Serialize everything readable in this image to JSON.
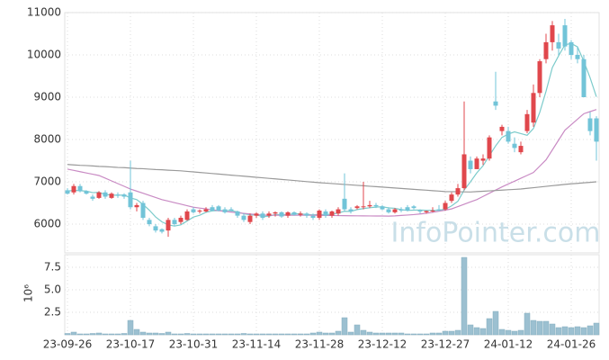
{
  "chart_data": [
    {
      "type": "candlestick",
      "open": [
        6800,
        6750,
        6900,
        6780,
        6650,
        6620,
        6750,
        6620,
        6700,
        6700,
        6750,
        6400,
        6500,
        6100,
        5950,
        5880,
        5850,
        6100,
        6050,
        6100,
        6350,
        6300,
        6300,
        6400,
        6420,
        6350,
        6350,
        6300,
        6200,
        6050,
        6200,
        6250,
        6200,
        6250,
        6280,
        6200,
        6280,
        6220,
        6250,
        6200,
        6150,
        6300,
        6200,
        6250,
        6600,
        6350,
        6380,
        6400,
        6420,
        6450,
        6420,
        6350,
        6280,
        6350,
        6400,
        6420,
        6320,
        6280,
        6300,
        6350,
        6350,
        6550,
        6700,
        6850,
        7500,
        7300,
        7500,
        7550,
        8900,
        8200,
        8200,
        7900,
        7700,
        8200,
        8400,
        9100,
        9900,
        10300,
        10300,
        10700,
        10300,
        10000,
        9900,
        8500,
        8500
      ],
      "high": [
        6850,
        6950,
        6950,
        6800,
        6700,
        6780,
        6800,
        6750,
        6750,
        6730,
        7500,
        6500,
        6550,
        6150,
        6000,
        5900,
        6150,
        6150,
        6200,
        6350,
        6400,
        6350,
        6400,
        6450,
        6450,
        6400,
        6400,
        6320,
        6250,
        6250,
        6280,
        6300,
        6300,
        6300,
        6300,
        6300,
        6300,
        6300,
        6280,
        6250,
        6350,
        6350,
        6320,
        6400,
        7200,
        6400,
        6450,
        7000,
        6550,
        6500,
        6450,
        6400,
        6380,
        6400,
        6450,
        6450,
        6350,
        6320,
        6400,
        6450,
        6550,
        6750,
        6950,
        8900,
        7600,
        7600,
        7650,
        8100,
        9600,
        8350,
        8300,
        8050,
        7950,
        8700,
        9300,
        9900,
        10500,
        10800,
        10500,
        10850,
        10350,
        10200,
        10000,
        8650,
        8550
      ],
      "low": [
        6700,
        6700,
        6750,
        6700,
        6550,
        6600,
        6600,
        6600,
        6620,
        6600,
        6350,
        6300,
        6100,
        5950,
        5800,
        5780,
        5700,
        5950,
        6000,
        6080,
        6250,
        6250,
        6280,
        6300,
        6300,
        6250,
        6300,
        6150,
        6050,
        6000,
        6150,
        6100,
        6150,
        6180,
        6150,
        6150,
        6200,
        6180,
        6150,
        6100,
        6100,
        6150,
        6150,
        6200,
        6300,
        6250,
        6350,
        6350,
        6380,
        6380,
        6330,
        6250,
        6250,
        6280,
        6300,
        6350,
        6250,
        6250,
        6280,
        6300,
        6320,
        6500,
        6650,
        6800,
        7200,
        7300,
        7400,
        7500,
        8700,
        8100,
        7900,
        7700,
        7650,
        8150,
        8300,
        9000,
        9800,
        10100,
        10000,
        10100,
        9900,
        9800,
        9000,
        8100,
        7500
      ],
      "close": [
        6720,
        6900,
        6780,
        6720,
        6600,
        6750,
        6650,
        6720,
        6680,
        6650,
        6400,
        6450,
        6150,
        6000,
        5850,
        5820,
        6100,
        6000,
        6150,
        6300,
        6280,
        6320,
        6350,
        6320,
        6320,
        6280,
        6320,
        6200,
        6100,
        6200,
        6250,
        6150,
        6250,
        6280,
        6180,
        6280,
        6220,
        6250,
        6200,
        6150,
        6320,
        6200,
        6300,
        6350,
        6350,
        6300,
        6420,
        6420,
        6450,
        6420,
        6350,
        6280,
        6350,
        6320,
        6320,
        6380,
        6300,
        6310,
        6320,
        6330,
        6500,
        6700,
        6850,
        7650,
        7300,
        7550,
        7550,
        8050,
        8800,
        8300,
        7950,
        7800,
        7850,
        8600,
        9100,
        9850,
        10300,
        10700,
        10150,
        10200,
        10000,
        9900,
        9000,
        8200,
        7950
      ],
      "up_color": "#e0474c",
      "down_color": "#72c4d8",
      "series": [
        {
          "color": "#7ccbcb",
          "values": [
            6780,
            6800,
            6790,
            6780,
            6744,
            6750,
            6700,
            6688,
            6680,
            6690,
            6620,
            6580,
            6466,
            6330,
            6170,
            6054,
            5984,
            5954,
            5984,
            6074,
            6166,
            6210,
            6280,
            6314,
            6318,
            6318,
            6318,
            6288,
            6244,
            6220,
            6214,
            6180,
            6190,
            6226,
            6222,
            6228,
            6242,
            6242,
            6226,
            6220,
            6228,
            6224,
            6234,
            6264,
            6304,
            6300,
            6344,
            6368,
            6388,
            6402,
            6412,
            6384,
            6374,
            6344,
            6324,
            6330,
            6334,
            6326,
            6326,
            6328,
            6352,
            6432,
            6540,
            6806,
            7000,
            7210,
            7380,
            7620,
            7850,
            8050,
            8130,
            8180,
            8140,
            8100,
            8260,
            8640,
            9140,
            9700,
            9980,
            10240,
            10270,
            10190,
            9850,
            9460,
            9010
          ]
        },
        {
          "color": "#c98bc4",
          "values": [
            7300,
            7270,
            7240,
            7210,
            7180,
            7150,
            7086,
            7022,
            6958,
            6894,
            6830,
            6780,
            6730,
            6680,
            6630,
            6580,
            6544,
            6508,
            6472,
            6436,
            6400,
            6380,
            6360,
            6340,
            6320,
            6300,
            6285,
            6270,
            6255,
            6240,
            6225,
            6215,
            6210,
            6210,
            6210,
            6210,
            6210,
            6210,
            6210,
            6210,
            6208,
            6206,
            6204,
            6202,
            6200,
            6198,
            6196,
            6195,
            6194,
            6193,
            6192,
            6190,
            6195,
            6205,
            6215,
            6225,
            6240,
            6255,
            6280,
            6305,
            6330,
            6360,
            6415,
            6470,
            6525,
            6580,
            6655,
            6730,
            6805,
            6880,
            6948,
            7016,
            7084,
            7152,
            7220,
            7370,
            7520,
            7753,
            7987,
            8220,
            8350,
            8480,
            8610,
            8660,
            8710
          ]
        },
        {
          "color": "#9a9a9a",
          "values": [
            7410,
            7400,
            7390,
            7385,
            7375,
            7365,
            7360,
            7350,
            7340,
            7335,
            7325,
            7315,
            7310,
            7300,
            7290,
            7285,
            7275,
            7268,
            7260,
            7247,
            7235,
            7222,
            7209,
            7196,
            7184,
            7171,
            7158,
            7145,
            7133,
            7120,
            7107,
            7095,
            7082,
            7069,
            7056,
            7044,
            7031,
            7018,
            7005,
            6993,
            6980,
            6970,
            6959,
            6949,
            6938,
            6928,
            6917,
            6907,
            6896,
            6886,
            6875,
            6865,
            6854,
            6844,
            6833,
            6823,
            6812,
            6802,
            6791,
            6781,
            6770,
            6768,
            6765,
            6763,
            6760,
            6769,
            6778,
            6786,
            6795,
            6804,
            6813,
            6821,
            6830,
            6846,
            6861,
            6877,
            6893,
            6909,
            6924,
            6940,
            6952,
            6964,
            6976,
            6988,
            7000
          ]
        }
      ],
      "ylim": [
        5320,
        11000
      ],
      "yticks": [
        6000,
        7000,
        8000,
        9000,
        10000,
        11000
      ],
      "grid": true,
      "watermark": "InfoPointer.com"
    },
    {
      "type": "bar",
      "categories": [
        "23-09-26",
        null,
        null,
        null,
        null,
        null,
        null,
        null,
        null,
        null,
        "23-10-17",
        null,
        null,
        null,
        null,
        null,
        null,
        null,
        null,
        null,
        "23-10-31",
        null,
        null,
        null,
        null,
        null,
        null,
        null,
        null,
        null,
        "23-11-14",
        null,
        null,
        null,
        null,
        null,
        null,
        null,
        null,
        null,
        "23-11-28",
        null,
        null,
        null,
        null,
        null,
        null,
        null,
        null,
        null,
        "23-12-12",
        null,
        null,
        null,
        null,
        null,
        null,
        null,
        null,
        null,
        "23-12-27",
        null,
        null,
        null,
        null,
        null,
        null,
        null,
        null,
        null,
        "24-01-12",
        null,
        null,
        null,
        null,
        null,
        null,
        null,
        null,
        null,
        "24-01-26",
        null,
        null,
        null,
        null
      ],
      "values": [
        0.15,
        0.3,
        0.1,
        0.1,
        0.15,
        0.2,
        0.1,
        0.1,
        0.1,
        0.15,
        1.6,
        0.6,
        0.3,
        0.2,
        0.2,
        0.15,
        0.3,
        0.1,
        0.1,
        0.15,
        0.1,
        0.1,
        0.1,
        0.1,
        0.1,
        0.1,
        0.1,
        0.1,
        0.15,
        0.1,
        0.1,
        0.1,
        0.1,
        0.1,
        0.1,
        0.1,
        0.1,
        0.1,
        0.1,
        0.2,
        0.3,
        0.2,
        0.2,
        0.4,
        1.9,
        0.3,
        1.1,
        0.5,
        0.3,
        0.2,
        0.2,
        0.2,
        0.2,
        0.2,
        0.1,
        0.1,
        0.1,
        0.1,
        0.2,
        0.2,
        0.4,
        0.4,
        0.5,
        8.6,
        1.1,
        0.8,
        0.7,
        1.8,
        2.6,
        0.6,
        0.5,
        0.4,
        0.5,
        2.4,
        1.6,
        1.5,
        1.5,
        1.2,
        0.8,
        0.9,
        0.8,
        0.9,
        0.8,
        1.0,
        1.3
      ],
      "color": "#9cc0d1",
      "ylim": [
        0,
        8.9
      ],
      "yticks": [
        2.5,
        {
          "value": 5,
          "label": "5.0"
        },
        7.5
      ],
      "grid": true,
      "ylabel": "10⁶"
    }
  ]
}
